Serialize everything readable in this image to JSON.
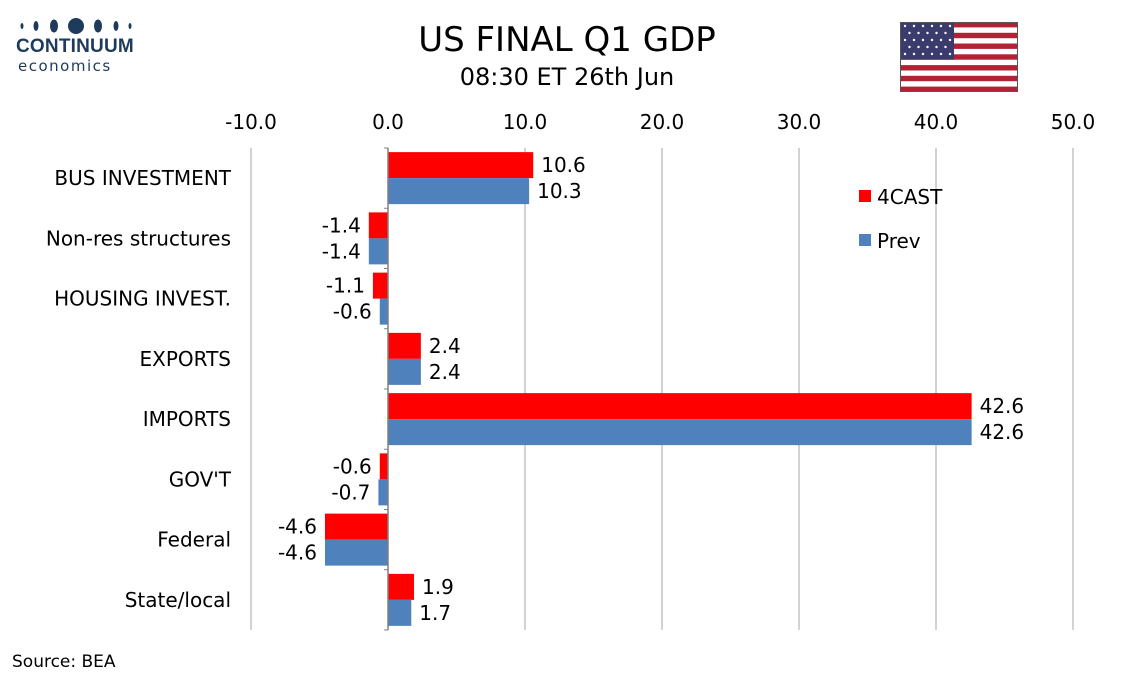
{
  "header": {
    "logo_name": "CONTINUUM",
    "logo_sub": "economics",
    "title": "US FINAL Q1 GDP",
    "subtitle": "08:30 ET 26th Jun"
  },
  "flag": {
    "name": "us-flag-icon"
  },
  "colors": {
    "forecast": "#ff0000",
    "previous": "#4f81bd",
    "grid": "#a6a6a6",
    "logo": "#1f3b5c"
  },
  "chart_data": {
    "type": "bar",
    "orientation": "horizontal",
    "categories": [
      "BUS INVESTMENT",
      "Non-res structures",
      "HOUSING INVEST.",
      "EXPORTS",
      "IMPORTS",
      "GOV'T",
      "Federal",
      "State/local"
    ],
    "series": [
      {
        "name": "4CAST",
        "color": "#ff0000",
        "values": [
          10.6,
          -1.4,
          -1.1,
          2.4,
          42.6,
          -0.6,
          -4.6,
          1.9
        ]
      },
      {
        "name": "Prev",
        "color": "#4f81bd",
        "values": [
          10.3,
          -1.4,
          -0.6,
          2.4,
          42.6,
          -0.7,
          -4.6,
          1.7
        ]
      }
    ],
    "x_ticks": [
      "-10.0",
      "0.0",
      "10.0",
      "20.0",
      "30.0",
      "40.0",
      "50.0"
    ],
    "xlim": [
      -10,
      50
    ],
    "x_axis_position": "top",
    "grid": true,
    "legend_position": "top-right",
    "data_labels": true
  },
  "footer": {
    "source": "Source: BEA"
  }
}
